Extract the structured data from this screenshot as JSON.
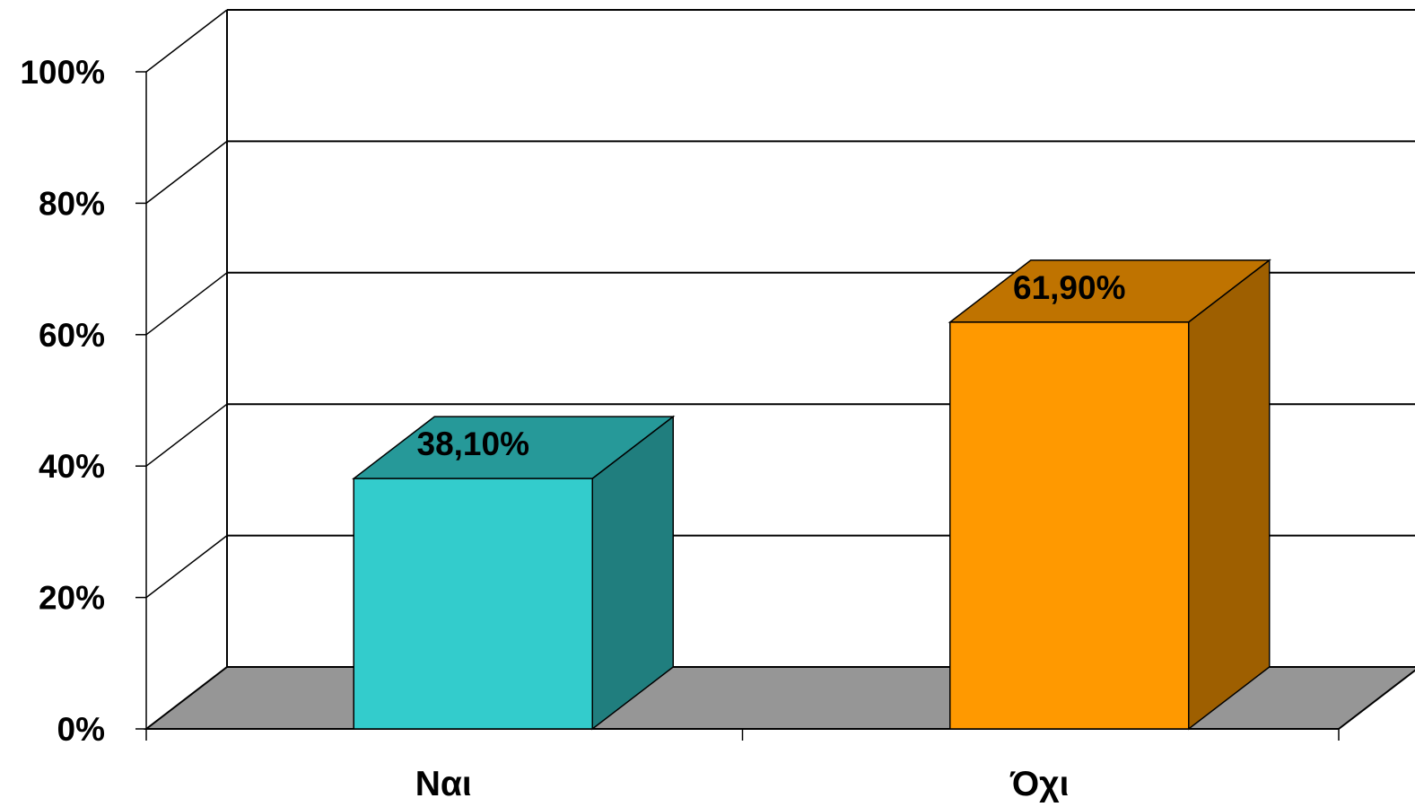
{
  "chart_data": {
    "type": "bar",
    "categories": [
      "Ναι",
      "Όχι"
    ],
    "values": [
      38.1,
      61.9
    ],
    "value_labels": [
      "38,10%",
      "61,90%"
    ],
    "title": "",
    "xlabel": "",
    "ylabel": "",
    "ylim": [
      0,
      100
    ],
    "yticks": [
      0,
      20,
      40,
      60,
      80,
      100
    ],
    "ytick_labels": [
      "0%",
      "20%",
      "40%",
      "60%",
      "80%",
      "100%"
    ],
    "grid": true,
    "three_d": true,
    "colors": {
      "bars": [
        "#33CCCC",
        "#FF9900"
      ],
      "floor": "#969696",
      "background": "#FFFFFF",
      "lines": "#000000"
    }
  }
}
